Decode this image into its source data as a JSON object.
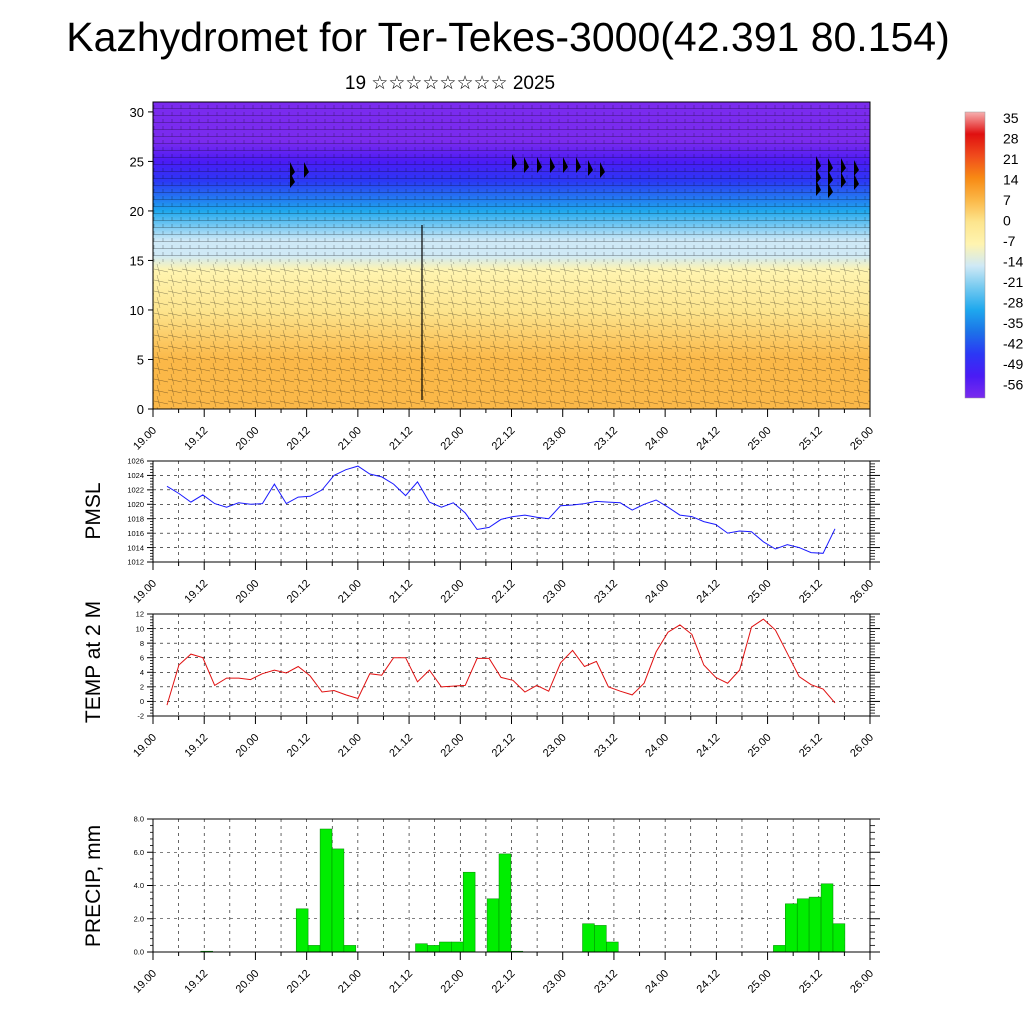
{
  "title": "Kazhydromet for Ter-Tekes-3000(42.391 80.154)",
  "subtitle": "19 ☆☆☆☆☆☆☆☆ 2025",
  "colors": {
    "pmsl_line": "#1a1aff",
    "temp_line": "#e01010",
    "precip_bar": "#00ee00",
    "precip_bar_edge": "#008800"
  },
  "chart_data": [
    {
      "id": "cross-section",
      "type": "heatmap",
      "xlabel": "",
      "ylabel": "",
      "xlim": [
        0,
        84
      ],
      "ylim": [
        0,
        31
      ],
      "y_ticks": [
        "0",
        "5",
        "10",
        "15",
        "20",
        "25",
        "30"
      ],
      "x_tick_labels": [
        "19.00",
        "19.12",
        "20.00",
        "20.12",
        "21.00",
        "21.12",
        "22.00",
        "22.12",
        "23.00",
        "23.12",
        "24.00",
        "24.12",
        "25.00",
        "25.12",
        "26.00"
      ],
      "colorbar_labels": [
        "35",
        "28",
        "21",
        "14",
        "7",
        "0",
        "-7",
        "-14",
        "-21",
        "-28",
        "-35",
        "-42",
        "-49",
        "-56"
      ],
      "colorbar_stops": [
        "#f7b0b0",
        "#e01010",
        "#f04c1c",
        "#f88a14",
        "#fbb848",
        "#fde58e",
        "#fff4b0",
        "#cfe9f6",
        "#73c9f0",
        "#1ea8ee",
        "#1c72e8",
        "#2b38f5",
        "#4a1bf5",
        "#7a2bee"
      ],
      "temperature_profile": [
        {
          "level": 0,
          "value": 9
        },
        {
          "level": 5,
          "value": 5
        },
        {
          "level": 10,
          "value": 1
        },
        {
          "level": 14,
          "value": -6
        },
        {
          "level": 15.5,
          "value": -13
        },
        {
          "level": 17,
          "value": -17
        },
        {
          "level": 20,
          "value": -27
        },
        {
          "level": 23,
          "value": -42
        },
        {
          "level": 25,
          "value": -50
        },
        {
          "level": 27,
          "value": -56
        },
        {
          "level": 31,
          "value": -60
        }
      ]
    },
    {
      "id": "pmsl",
      "type": "line",
      "ylabel": "PMSL",
      "xlim": [
        0,
        84
      ],
      "ylim": [
        1012,
        1026
      ],
      "y_ticks": [
        "1012",
        "1014",
        "1016",
        "1018",
        "1020",
        "1022",
        "1024",
        "1026"
      ],
      "x_tick_labels": [
        "19.00",
        "19.12",
        "20.00",
        "20.12",
        "21.00",
        "21.12",
        "22.00",
        "22.12",
        "23.00",
        "23.12",
        "24.00",
        "24.12",
        "25.00",
        "25.12",
        "26.00"
      ],
      "series": [
        {
          "values": [
            1022.5,
            1021.5,
            1020.3,
            1021.3,
            1020.1,
            1019.6,
            1020.2,
            1020.0,
            1020.1,
            1022.8,
            1020.1,
            1021.0,
            1021.1,
            1022.0,
            1024.0,
            1024.8,
            1025.3,
            1024.2,
            1023.8,
            1022.8,
            1021.2,
            1023.1,
            1020.3,
            1019.6,
            1020.2,
            1018.8,
            1016.5,
            1016.8,
            1017.9,
            1018.3,
            1018.5,
            1018.2,
            1018.0,
            1019.8,
            1019.9,
            1020.1,
            1020.4,
            1020.3,
            1020.2,
            1019.2,
            1020.0,
            1020.6,
            1019.6,
            1018.5,
            1018.3,
            1017.6,
            1017.2,
            1016.0,
            1016.3,
            1016.2,
            1014.8,
            1013.8,
            1014.4,
            1014.0,
            1013.3,
            1013.2,
            1016.6
          ]
        }
      ]
    },
    {
      "id": "temp2m",
      "type": "line",
      "ylabel": "TEMP at 2 M",
      "xlim": [
        0,
        84
      ],
      "ylim": [
        -2,
        12
      ],
      "y_ticks": [
        "-2",
        "0",
        "2",
        "4",
        "6",
        "8",
        "10",
        "12"
      ],
      "x_tick_labels": [
        "19.00",
        "19.12",
        "20.00",
        "20.12",
        "21.00",
        "21.12",
        "22.00",
        "22.12",
        "23.00",
        "23.12",
        "24.00",
        "24.12",
        "25.00",
        "25.12",
        "26.00"
      ],
      "series": [
        {
          "values": [
            -0.5,
            5.0,
            6.5,
            6.0,
            2.2,
            3.2,
            3.2,
            3.0,
            3.8,
            4.3,
            3.9,
            4.8,
            3.5,
            1.3,
            1.5,
            0.9,
            0.4,
            3.8,
            3.6,
            6.0,
            6.0,
            2.7,
            4.3,
            2.0,
            2.1,
            2.2,
            5.9,
            5.9,
            3.3,
            2.9,
            1.3,
            2.2,
            1.4,
            5.3,
            7.0,
            4.8,
            5.5,
            2.0,
            1.4,
            0.9,
            2.5,
            6.8,
            9.5,
            10.5,
            9.2,
            5.0,
            3.3,
            2.5,
            4.3,
            10.2,
            11.3,
            9.8,
            6.6,
            3.4,
            2.3,
            1.7,
            -0.2
          ]
        }
      ]
    },
    {
      "id": "precip",
      "type": "bar",
      "ylabel": "PRECIP, mm",
      "xlim": [
        0,
        84
      ],
      "ylim": [
        0,
        8
      ],
      "y_ticks": [
        "0.0",
        "2.0",
        "4.0",
        "6.0",
        "8.0"
      ],
      "x_tick_labels": [
        "19.00",
        "19.12",
        "20.00",
        "20.12",
        "21.00",
        "21.12",
        "22.00",
        "22.12",
        "23.00",
        "23.12",
        "24.00",
        "24.12",
        "25.00",
        "25.12",
        "26.00"
      ],
      "series": [
        {
          "values": [
            0,
            0,
            0,
            0.05,
            0,
            0,
            0,
            0,
            0,
            0,
            0,
            2.6,
            0.4,
            7.4,
            6.2,
            0.4,
            0,
            0,
            0,
            0,
            0,
            0.5,
            0.4,
            0.6,
            0.6,
            4.8,
            0,
            3.2,
            5.9,
            0.05,
            0,
            0,
            0,
            0,
            0,
            1.7,
            1.6,
            0.6,
            0,
            0,
            0,
            0,
            0,
            0,
            0,
            0,
            0,
            0,
            0,
            0,
            0,
            0.4,
            2.9,
            3.2,
            3.3,
            4.1,
            1.7
          ]
        }
      ]
    }
  ]
}
